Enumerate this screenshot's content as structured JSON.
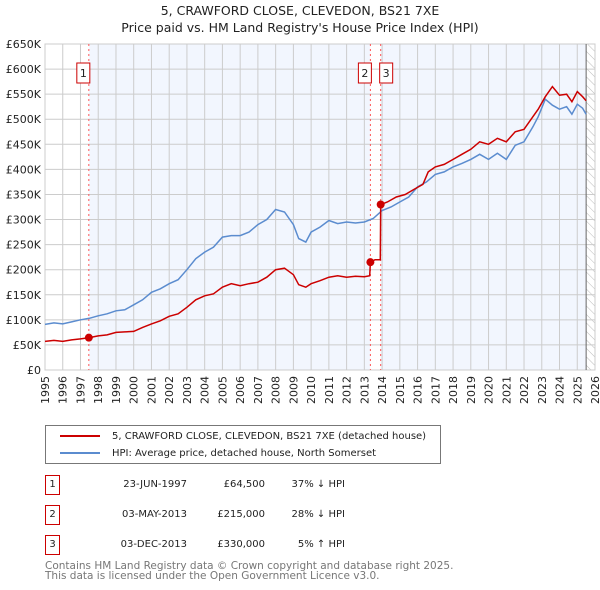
{
  "chart_data": {
    "type": "line",
    "title": "5, CRAWFORD CLOSE, CLEVEDON, BS21 7XE",
    "subtitle": "Price paid vs. HM Land Registry's House Price Index (HPI)",
    "xlim": [
      1995,
      2026
    ],
    "ylim": [
      0,
      650000
    ],
    "x_ticks": [
      "1995",
      "1996",
      "1997",
      "1998",
      "1999",
      "2000",
      "2001",
      "2002",
      "2003",
      "2004",
      "2005",
      "2006",
      "2007",
      "2008",
      "2009",
      "2010",
      "2011",
      "2012",
      "2013",
      "2014",
      "2015",
      "2016",
      "2017",
      "2018",
      "2019",
      "2020",
      "2021",
      "2022",
      "2023",
      "2024",
      "2025",
      "2026"
    ],
    "y_ticks": [
      {
        "v": 0,
        "label": "£0"
      },
      {
        "v": 50000,
        "label": "£50K"
      },
      {
        "v": 100000,
        "label": "£100K"
      },
      {
        "v": 150000,
        "label": "£150K"
      },
      {
        "v": 200000,
        "label": "£200K"
      },
      {
        "v": 250000,
        "label": "£250K"
      },
      {
        "v": 300000,
        "label": "£300K"
      },
      {
        "v": 350000,
        "label": "£350K"
      },
      {
        "v": 400000,
        "label": "£400K"
      },
      {
        "v": 450000,
        "label": "£450K"
      },
      {
        "v": 500000,
        "label": "£500K"
      },
      {
        "v": 550000,
        "label": "£550K"
      },
      {
        "v": 600000,
        "label": "£600K"
      },
      {
        "v": 650000,
        "label": "£650K"
      }
    ],
    "grid": true,
    "data_end": 2025.5,
    "series": [
      {
        "name": "5, CRAWFORD CLOSE, CLEVEDON, BS21 7XE (detached house)",
        "color": "#cc0000",
        "x": [
          1995,
          1995.5,
          1996,
          1996.5,
          1997,
          1997.47,
          1998,
          1998.5,
          1999,
          1999.5,
          2000,
          2000.5,
          2001,
          2001.5,
          2002,
          2002.5,
          2003,
          2003.5,
          2004,
          2004.5,
          2005,
          2005.5,
          2006,
          2006.5,
          2007,
          2007.5,
          2008,
          2008.5,
          2009,
          2009.3,
          2009.7,
          2010,
          2010.5,
          2011,
          2011.5,
          2012,
          2012.5,
          2013,
          2013.3,
          2013.34,
          2013.6,
          2013.9,
          2013.92,
          2014.3,
          2014.8,
          2015.3,
          2015.8,
          2016.3,
          2016.6,
          2017,
          2017.5,
          2018,
          2018.5,
          2019,
          2019.5,
          2020,
          2020.5,
          2021,
          2021.5,
          2022,
          2022.5,
          2022.8,
          2023.2,
          2023.6,
          2024,
          2024.4,
          2024.7,
          2025,
          2025.3,
          2025.5
        ],
        "values": [
          57000,
          59000,
          57000,
          60000,
          62000,
          64500,
          68000,
          70000,
          75000,
          76000,
          77000,
          85000,
          92000,
          98000,
          107000,
          112000,
          125000,
          140000,
          148000,
          152000,
          165000,
          172000,
          168000,
          172000,
          175000,
          185000,
          200000,
          203000,
          190000,
          170000,
          165000,
          172000,
          178000,
          185000,
          188000,
          185000,
          187000,
          186000,
          188000,
          215000,
          220000,
          220000,
          330000,
          335000,
          345000,
          350000,
          360000,
          370000,
          395000,
          405000,
          410000,
          420000,
          430000,
          440000,
          455000,
          450000,
          462000,
          455000,
          475000,
          480000,
          505000,
          520000,
          545000,
          565000,
          548000,
          550000,
          535000,
          555000,
          545000,
          537000
        ],
        "type": "line"
      },
      {
        "name": "HPI: Average price, detached house, North Somerset",
        "color": "#5b8ccf",
        "x": [
          1995,
          1995.5,
          1996,
          1996.5,
          1997,
          1997.5,
          1998,
          1998.5,
          1999,
          1999.5,
          2000,
          2000.5,
          2001,
          2001.5,
          2002,
          2002.5,
          2003,
          2003.5,
          2004,
          2004.5,
          2005,
          2005.5,
          2006,
          2006.5,
          2007,
          2007.5,
          2008,
          2008.5,
          2009,
          2009.3,
          2009.7,
          2010,
          2010.5,
          2011,
          2011.5,
          2012,
          2012.5,
          2013,
          2013.5,
          2014,
          2014.5,
          2015,
          2015.5,
          2016,
          2016.5,
          2017,
          2017.5,
          2018,
          2018.5,
          2019,
          2019.5,
          2020,
          2020.5,
          2021,
          2021.5,
          2022,
          2022.5,
          2022.8,
          2023.2,
          2023.6,
          2024,
          2024.4,
          2024.7,
          2025,
          2025.3,
          2025.5
        ],
        "values": [
          91000,
          94000,
          92000,
          96000,
          100000,
          103000,
          108000,
          112000,
          118000,
          120000,
          130000,
          140000,
          155000,
          162000,
          172000,
          180000,
          200000,
          222000,
          235000,
          245000,
          265000,
          268000,
          268000,
          275000,
          290000,
          300000,
          320000,
          315000,
          290000,
          262000,
          255000,
          275000,
          285000,
          298000,
          292000,
          295000,
          293000,
          295000,
          302000,
          318000,
          325000,
          335000,
          345000,
          365000,
          375000,
          390000,
          395000,
          405000,
          412000,
          420000,
          430000,
          420000,
          432000,
          420000,
          448000,
          455000,
          485000,
          505000,
          540000,
          528000,
          520000,
          525000,
          510000,
          530000,
          522000,
          510000
        ],
        "type": "line"
      }
    ],
    "sales": [
      {
        "n": "1",
        "x": 1997.47,
        "value": 64500,
        "date": "23-JUN-1997",
        "price": "£64,500",
        "hpi": "37% ↓ HPI"
      },
      {
        "n": "2",
        "x": 2013.34,
        "value": 215000,
        "date": "03-MAY-2013",
        "price": "£215,000",
        "hpi": "28% ↓ HPI"
      },
      {
        "n": "3",
        "x": 2013.92,
        "value": 330000,
        "date": "03-DEC-2013",
        "price": "£330,000",
        "hpi": "5% ↑ HPI"
      }
    ],
    "legend_position": "below"
  },
  "footer": {
    "line1": "Contains HM Land Registry data © Crown copyright and database right 2025.",
    "line2": "This data is licensed under the Open Government Licence v3.0."
  }
}
